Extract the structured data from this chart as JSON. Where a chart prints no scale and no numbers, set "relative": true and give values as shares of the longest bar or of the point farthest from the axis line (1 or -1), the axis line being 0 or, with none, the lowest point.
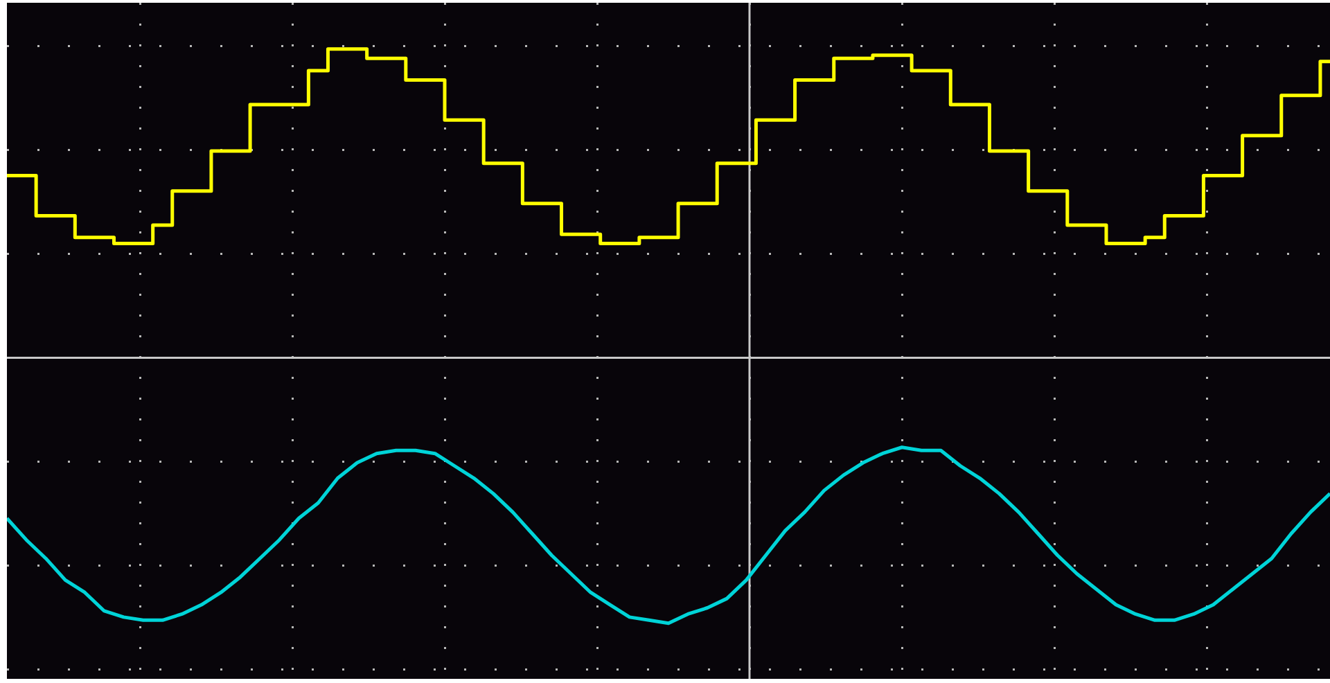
{
  "chart_data": {
    "type": "line",
    "relative": true,
    "grid": true,
    "marker": "none",
    "categories": [
      null,
      null,
      null,
      null,
      null,
      null,
      null,
      null,
      null,
      null,
      null,
      null,
      null,
      null,
      null,
      null,
      null,
      null,
      null,
      null,
      null,
      null,
      null,
      null,
      null,
      null,
      null,
      null,
      null,
      null,
      null,
      null,
      null,
      null,
      null,
      null,
      null,
      null,
      null,
      null,
      null,
      null,
      null,
      null,
      null,
      null,
      null,
      null,
      null,
      null,
      null,
      null,
      null,
      null,
      null,
      null,
      null,
      null,
      null,
      null,
      null,
      null,
      null,
      null,
      null,
      null,
      null,
      null,
      null
    ],
    "series": [
      {
        "type": "step",
        "color": "#ffff00",
        "values": [
          0.59,
          0.59,
          0.46,
          0.46,
          0.39,
          0.39,
          0.37,
          0.37,
          0.43,
          0.54,
          0.54,
          0.67,
          0.67,
          0.82,
          0.82,
          0.82,
          0.93,
          1.0,
          1.0,
          0.97,
          0.97,
          0.9,
          0.9,
          0.77,
          0.77,
          0.63,
          0.63,
          0.5,
          0.5,
          0.4,
          0.4,
          0.37,
          0.37,
          0.39,
          0.39,
          0.5,
          0.5,
          0.63,
          0.63,
          0.77,
          0.77,
          0.9,
          0.9,
          0.97,
          0.97,
          0.98,
          0.98,
          0.93,
          0.93,
          0.82,
          0.82,
          0.67,
          0.67,
          0.54,
          0.54,
          0.43,
          0.43,
          0.37,
          0.37,
          0.39,
          0.46,
          0.46,
          0.59,
          0.59,
          0.72,
          0.72,
          0.85,
          0.85,
          0.96
        ]
      },
      {
        "type": "line",
        "color": "#00d4d8",
        "values": [
          -0.52,
          -0.59,
          -0.65,
          -0.72,
          -0.76,
          -0.82,
          -0.84,
          -0.85,
          -0.85,
          -0.83,
          -0.8,
          -0.76,
          -0.71,
          -0.65,
          -0.59,
          -0.52,
          -0.47,
          -0.39,
          -0.34,
          -0.31,
          -0.3,
          -0.3,
          -0.31,
          -0.35,
          -0.39,
          -0.44,
          -0.5,
          -0.57,
          -0.64,
          -0.7,
          -0.76,
          -0.8,
          -0.84,
          -0.85,
          -0.86,
          -0.83,
          -0.81,
          -0.78,
          -0.72,
          -0.64,
          -0.56,
          -0.5,
          -0.43,
          -0.38,
          -0.34,
          -0.31,
          -0.29,
          -0.3,
          -0.3,
          -0.35,
          -0.39,
          -0.44,
          -0.5,
          -0.57,
          -0.64,
          -0.7,
          -0.75,
          -0.8,
          -0.83,
          -0.85,
          -0.85,
          -0.83,
          -0.8,
          -0.75,
          -0.7,
          -0.65,
          -0.57,
          -0.5,
          -0.44
        ]
      }
    ]
  }
}
